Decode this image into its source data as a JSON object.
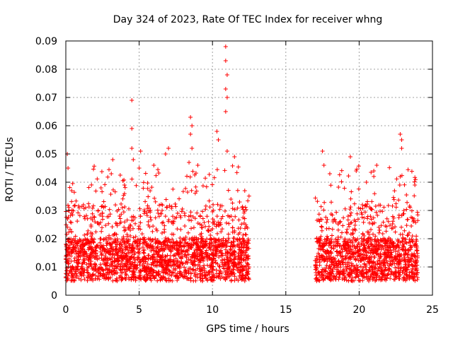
{
  "chart_data": {
    "type": "scatter",
    "title": "Day 324 of 2023, Rate Of TEC Index for receiver whng",
    "xlabel": "GPS time / hours",
    "ylabel": "ROTI / TECUs",
    "xlim": [
      0,
      25
    ],
    "ylim": [
      0,
      0.09
    ],
    "x_ticks": [
      0,
      5,
      10,
      15,
      20,
      25
    ],
    "y_ticks": [
      0,
      0.01,
      0.02,
      0.03,
      0.04,
      0.05,
      0.06,
      0.07,
      0.08,
      0.09
    ],
    "grid": true,
    "marker": "+",
    "color": "#ff0000",
    "coverage_segments": [
      [
        0,
        12.5
      ],
      [
        17.0,
        24.0
      ]
    ],
    "typical_band": [
      0.005,
      0.02
    ],
    "notable_points": [
      {
        "x": 0.1,
        "y": 0.05
      },
      {
        "x": 0.15,
        "y": 0.045
      },
      {
        "x": 0.4,
        "y": 0.037
      },
      {
        "x": 1.2,
        "y": 0.032
      },
      {
        "x": 2.4,
        "y": 0.038
      },
      {
        "x": 3.2,
        "y": 0.048
      },
      {
        "x": 3.1,
        "y": 0.043
      },
      {
        "x": 4.0,
        "y": 0.039
      },
      {
        "x": 4.5,
        "y": 0.069
      },
      {
        "x": 4.5,
        "y": 0.059
      },
      {
        "x": 4.5,
        "y": 0.052
      },
      {
        "x": 4.6,
        "y": 0.048
      },
      {
        "x": 5.1,
        "y": 0.051
      },
      {
        "x": 5.0,
        "y": 0.045
      },
      {
        "x": 6.0,
        "y": 0.046
      },
      {
        "x": 6.8,
        "y": 0.05
      },
      {
        "x": 7.0,
        "y": 0.052
      },
      {
        "x": 8.5,
        "y": 0.063
      },
      {
        "x": 8.6,
        "y": 0.06
      },
      {
        "x": 8.5,
        "y": 0.057
      },
      {
        "x": 8.6,
        "y": 0.052
      },
      {
        "x": 8.4,
        "y": 0.047
      },
      {
        "x": 9.0,
        "y": 0.046
      },
      {
        "x": 10.3,
        "y": 0.058
      },
      {
        "x": 10.4,
        "y": 0.055
      },
      {
        "x": 10.9,
        "y": 0.088
      },
      {
        "x": 10.9,
        "y": 0.083
      },
      {
        "x": 11.0,
        "y": 0.078
      },
      {
        "x": 10.9,
        "y": 0.073
      },
      {
        "x": 11.0,
        "y": 0.07
      },
      {
        "x": 10.9,
        "y": 0.065
      },
      {
        "x": 11.0,
        "y": 0.051
      },
      {
        "x": 11.5,
        "y": 0.049
      },
      {
        "x": 12.2,
        "y": 0.037
      },
      {
        "x": 17.5,
        "y": 0.051
      },
      {
        "x": 17.6,
        "y": 0.046
      },
      {
        "x": 18.0,
        "y": 0.043
      },
      {
        "x": 19.4,
        "y": 0.049
      },
      {
        "x": 19.8,
        "y": 0.044
      },
      {
        "x": 20.5,
        "y": 0.04
      },
      {
        "x": 21.2,
        "y": 0.046
      },
      {
        "x": 21.0,
        "y": 0.044
      },
      {
        "x": 22.8,
        "y": 0.057
      },
      {
        "x": 22.9,
        "y": 0.055
      },
      {
        "x": 22.9,
        "y": 0.052
      },
      {
        "x": 22.8,
        "y": 0.042
      },
      {
        "x": 23.8,
        "y": 0.039
      }
    ]
  }
}
